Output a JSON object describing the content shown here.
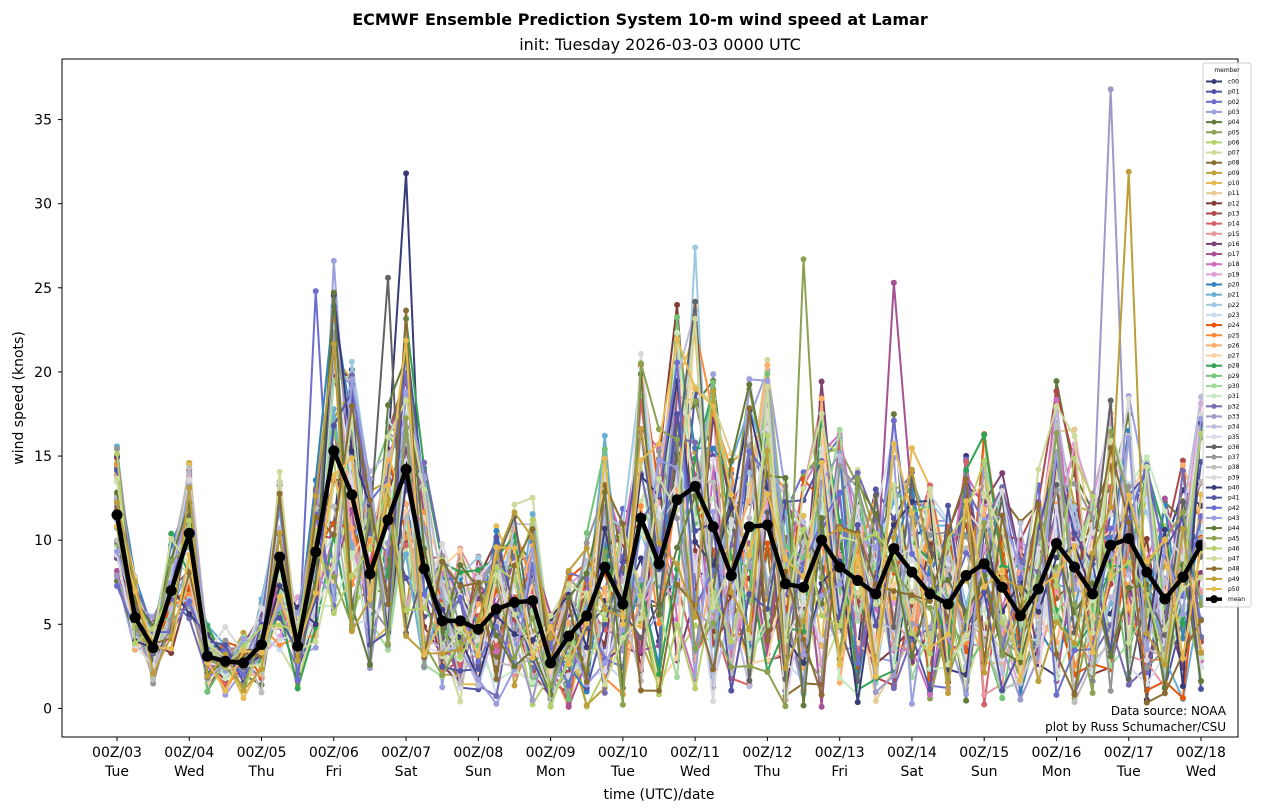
{
  "chart_data": {
    "type": "line",
    "title": "ECMWF Ensemble Prediction System 10-m wind speed at Lamar",
    "subtitle": "init: Tuesday 2026-03-03 0000 UTC",
    "xlabel": "time (UTC)/date",
    "ylabel": "wind speed (knots)",
    "ylim": [
      -1.7,
      38.6
    ],
    "yticks": [
      0,
      5,
      10,
      15,
      20,
      25,
      30,
      35
    ],
    "xtick_labels": [
      [
        "00Z/03",
        "Tue"
      ],
      [
        "00Z/04",
        "Wed"
      ],
      [
        "00Z/05",
        "Thu"
      ],
      [
        "00Z/06",
        "Fri"
      ],
      [
        "00Z/07",
        "Sat"
      ],
      [
        "00Z/08",
        "Sun"
      ],
      [
        "00Z/09",
        "Mon"
      ],
      [
        "00Z/10",
        "Tue"
      ],
      [
        "00Z/11",
        "Wed"
      ],
      [
        "00Z/12",
        "Thu"
      ],
      [
        "00Z/13",
        "Fri"
      ],
      [
        "00Z/14",
        "Sat"
      ],
      [
        "00Z/15",
        "Sun"
      ],
      [
        "00Z/16",
        "Mon"
      ],
      [
        "00Z/17",
        "Tue"
      ],
      [
        "00Z/18",
        "Wed"
      ]
    ],
    "time_step_hours": 6,
    "grid": false,
    "legend": {
      "title": "member",
      "placement": "top-right"
    },
    "mean": {
      "name": "mean",
      "color": "#000000",
      "values": [
        11.5,
        5.4,
        3.6,
        7.0,
        10.4,
        3.1,
        2.8,
        2.7,
        3.8,
        9.0,
        3.7,
        9.3,
        15.3,
        12.7,
        8.0,
        11.2,
        14.2,
        8.3,
        5.2,
        5.2,
        4.7,
        5.9,
        6.3,
        6.4,
        2.7,
        4.3,
        5.5,
        8.4,
        6.2,
        11.3,
        8.6,
        12.4,
        13.2,
        10.8,
        7.9,
        10.8,
        10.9,
        7.4,
        7.2,
        10.0,
        8.4,
        7.6,
        6.8,
        9.5,
        8.1,
        6.8,
        6.2,
        7.9,
        8.6,
        7.2,
        5.5,
        7.1,
        9.8,
        8.4,
        6.8,
        9.7,
        10.1,
        8.1,
        6.5,
        7.8,
        9.7
      ]
    },
    "members": [
      {
        "name": "c00",
        "color": "#393b79"
      },
      {
        "name": "p01",
        "color": "#5254a3"
      },
      {
        "name": "p02",
        "color": "#6b6ecf"
      },
      {
        "name": "p03",
        "color": "#9c9ede"
      },
      {
        "name": "p04",
        "color": "#637939"
      },
      {
        "name": "p05",
        "color": "#8ca252"
      },
      {
        "name": "p06",
        "color": "#b5cf6b"
      },
      {
        "name": "p07",
        "color": "#cedb9c"
      },
      {
        "name": "p08",
        "color": "#8c6d31"
      },
      {
        "name": "p09",
        "color": "#bd9e39"
      },
      {
        "name": "p10",
        "color": "#e7ba52"
      },
      {
        "name": "p11",
        "color": "#e7cb94"
      },
      {
        "name": "p12",
        "color": "#843c39"
      },
      {
        "name": "p13",
        "color": "#ad494a"
      },
      {
        "name": "p14",
        "color": "#d6616b"
      },
      {
        "name": "p15",
        "color": "#e7969c"
      },
      {
        "name": "p16",
        "color": "#7b4173"
      },
      {
        "name": "p17",
        "color": "#a55194"
      },
      {
        "name": "p18",
        "color": "#ce6dbd"
      },
      {
        "name": "p19",
        "color": "#de9ed6"
      },
      {
        "name": "p20",
        "color": "#3182bd"
      },
      {
        "name": "p21",
        "color": "#6baed6"
      },
      {
        "name": "p22",
        "color": "#9ecae1"
      },
      {
        "name": "p23",
        "color": "#c6dbef"
      },
      {
        "name": "p24",
        "color": "#e6550d"
      },
      {
        "name": "p25",
        "color": "#fd8d3c"
      },
      {
        "name": "p26",
        "color": "#fdae6b"
      },
      {
        "name": "p27",
        "color": "#fdd0a2"
      },
      {
        "name": "p28",
        "color": "#31a354"
      },
      {
        "name": "p29",
        "color": "#74c476"
      },
      {
        "name": "p30",
        "color": "#a1d99b"
      },
      {
        "name": "p31",
        "color": "#c7e9c0"
      },
      {
        "name": "p32",
        "color": "#756bb1"
      },
      {
        "name": "p33",
        "color": "#9e9ac8"
      },
      {
        "name": "p34",
        "color": "#bcbddc"
      },
      {
        "name": "p35",
        "color": "#dadaeb"
      },
      {
        "name": "p36",
        "color": "#636363"
      },
      {
        "name": "p37",
        "color": "#969696"
      },
      {
        "name": "p38",
        "color": "#bdbdbd"
      },
      {
        "name": "p39",
        "color": "#d9d9d9"
      },
      {
        "name": "p40",
        "color": "#393b79"
      },
      {
        "name": "p41",
        "color": "#5254a3"
      },
      {
        "name": "p42",
        "color": "#6b6ecf"
      },
      {
        "name": "p43",
        "color": "#9c9ede"
      },
      {
        "name": "p44",
        "color": "#637939"
      },
      {
        "name": "p45",
        "color": "#8ca252"
      },
      {
        "name": "p46",
        "color": "#b5cf6b"
      },
      {
        "name": "p47",
        "color": "#cedb9c"
      },
      {
        "name": "p48",
        "color": "#8c6d31"
      },
      {
        "name": "p49",
        "color": "#bd9e39"
      },
      {
        "name": "p50",
        "color": "#e7ba52"
      }
    ],
    "member_peaks": [
      {
        "member": "c00",
        "step": 16,
        "value": 31.8
      },
      {
        "member": "p02",
        "step": 11,
        "value": 24.8
      },
      {
        "member": "p03",
        "step": 12,
        "value": 26.6
      },
      {
        "member": "p36",
        "step": 15,
        "value": 25.6
      },
      {
        "member": "p22",
        "step": 32,
        "value": 27.4
      },
      {
        "member": "p45",
        "step": 38,
        "value": 26.7
      },
      {
        "member": "p17",
        "step": 43,
        "value": 25.3
      },
      {
        "member": "p33",
        "step": 55,
        "value": 36.8
      },
      {
        "member": "p49",
        "step": 56,
        "value": 31.9
      }
    ]
  },
  "annotation": {
    "line1": "Data source: NOAA",
    "line2": "plot by Russ Schumacher/CSU"
  }
}
